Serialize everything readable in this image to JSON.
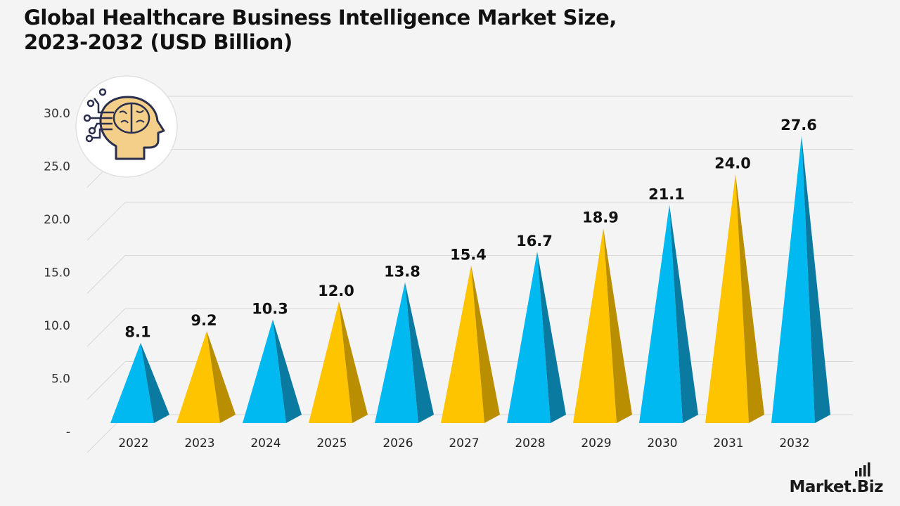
{
  "title_lines": [
    "Global Healthcare Business Intelligence Market Size,",
    "2023-2032 (USD Billion)"
  ],
  "brand": "Market.Biz",
  "chart_data": {
    "type": "bar",
    "title": "Global Healthcare Business Intelligence Market Size, 2023-2032 (USD Billion)",
    "categories": [
      "2022",
      "2023",
      "2024",
      "2025",
      "2026",
      "2027",
      "2028",
      "2029",
      "2030",
      "2031",
      "2032"
    ],
    "values": [
      8.1,
      9.2,
      10.3,
      12.0,
      13.8,
      15.4,
      16.7,
      18.9,
      21.1,
      24.0,
      27.6
    ],
    "value_labels": [
      "8.1",
      "9.2",
      "10.3",
      "12.0",
      "13.8",
      "15.4",
      "16.7",
      "18.9",
      "21.1",
      "24.0",
      "27.6"
    ],
    "ylim": [
      0,
      30
    ],
    "y_ticks": [
      0,
      5,
      10,
      15,
      20,
      25,
      30
    ],
    "y_tick_labels": [
      "-",
      "5.0",
      "10.0",
      "15.0",
      "20.0",
      "25.0",
      "30.0"
    ],
    "grid": true,
    "colors": {
      "blue_front": "#00b9f1",
      "blue_side": "#0a7aa0",
      "gold_front": "#ffc400",
      "gold_side": "#b98e00",
      "grid": "#d8d8d8",
      "icon_face": "#f3cf8a",
      "icon_stroke": "#2a2f4e"
    },
    "bar_colors": [
      "blue",
      "gold",
      "blue",
      "gold",
      "blue",
      "gold",
      "blue",
      "gold",
      "blue",
      "gold",
      "blue"
    ]
  },
  "icon": "brain-head-icon"
}
